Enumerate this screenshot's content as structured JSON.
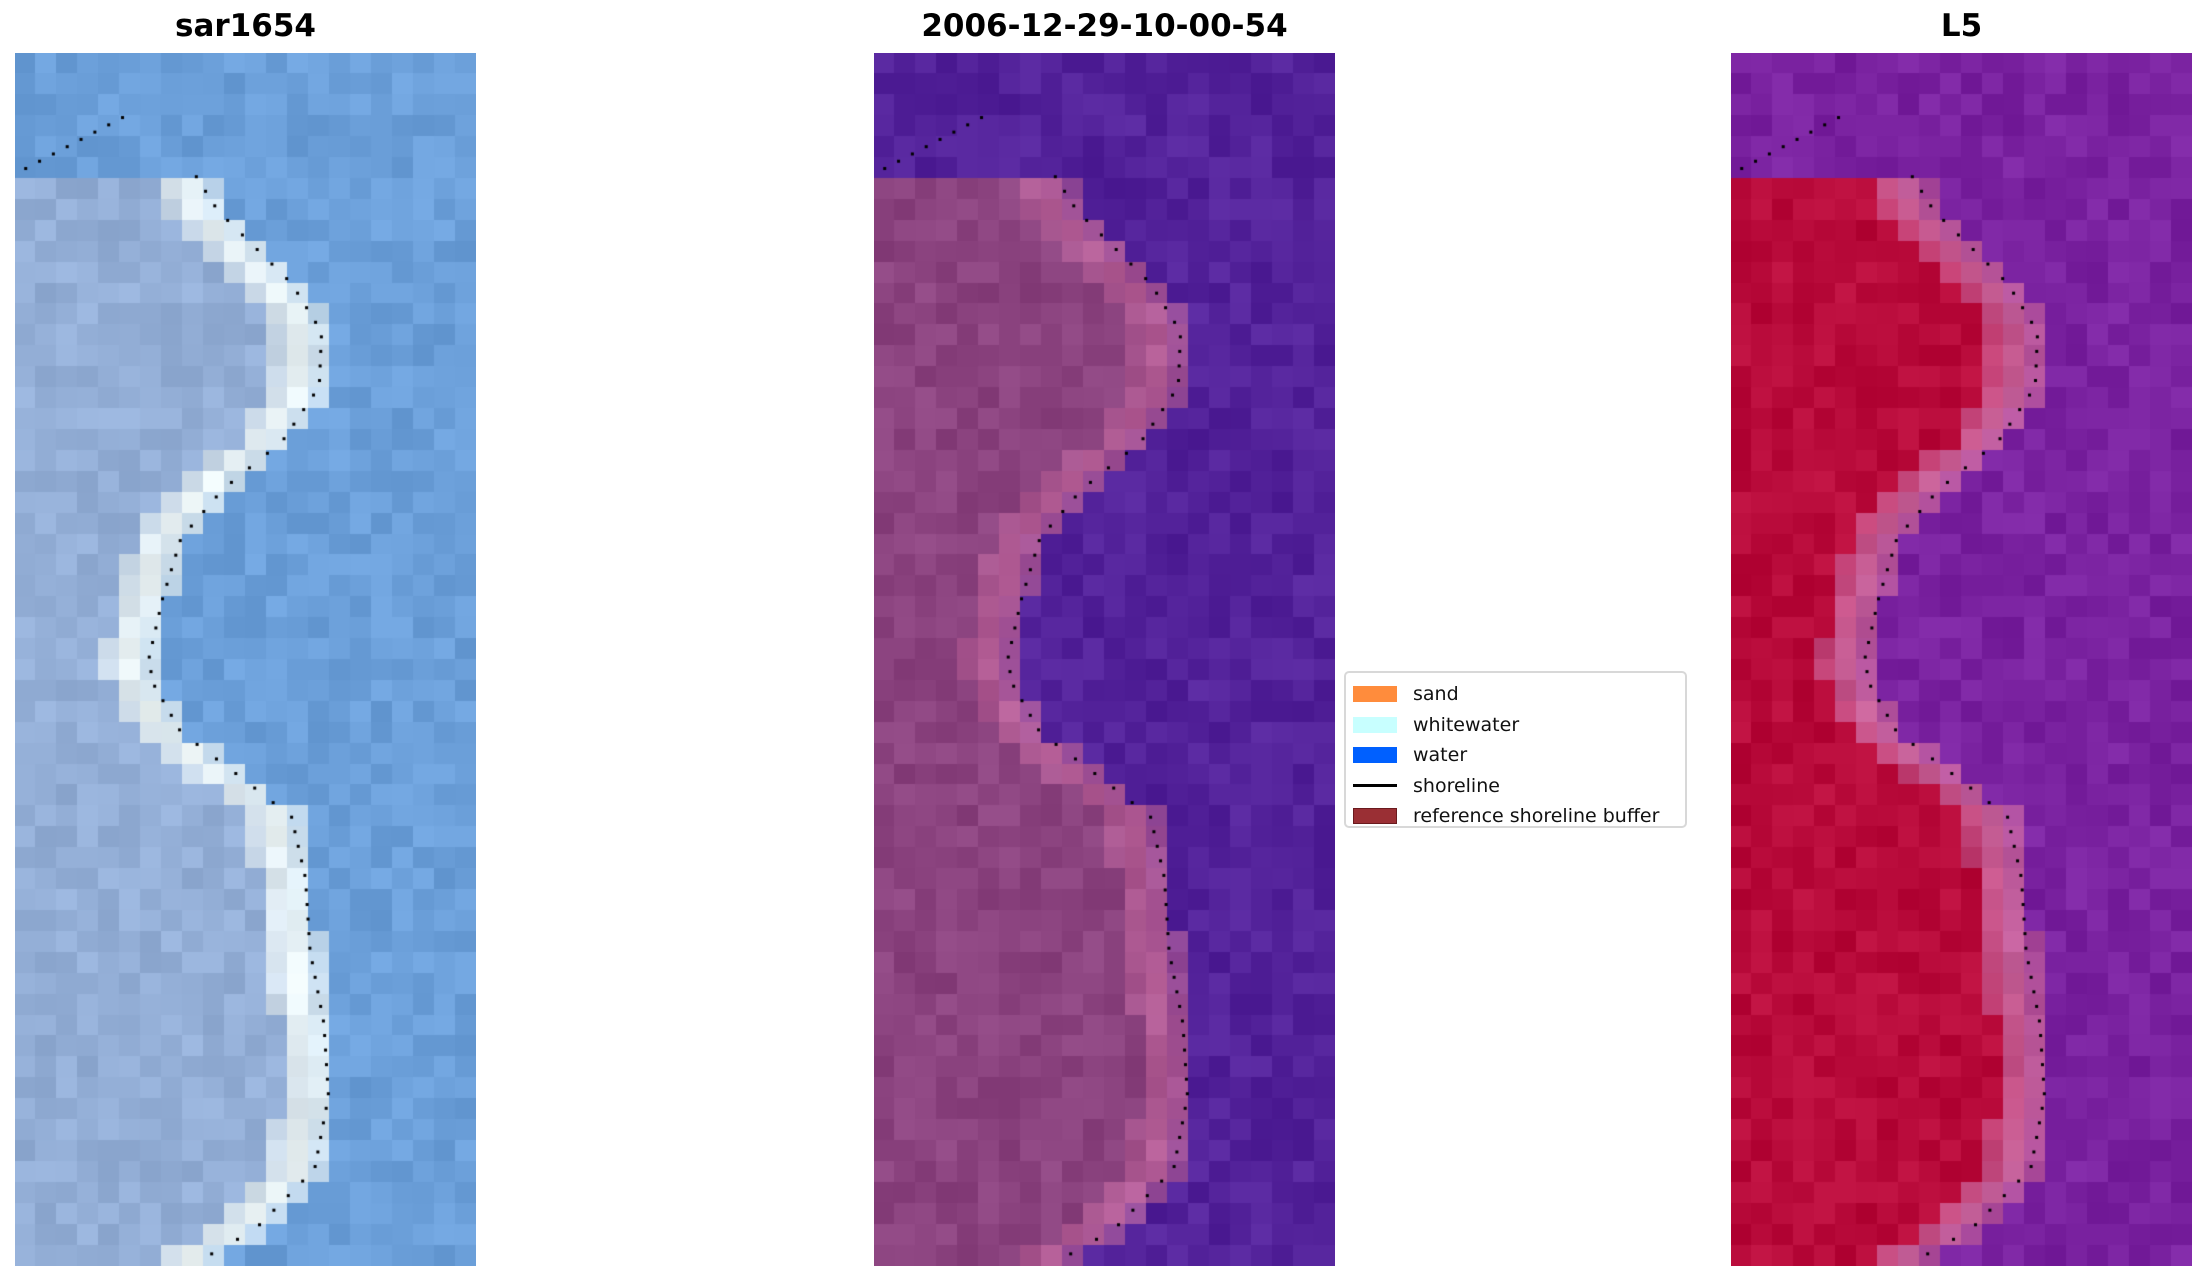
{
  "chart_data": [
    {
      "type": "heatmap",
      "title": "sar1654",
      "colors": {
        "water": "#6b9fd9",
        "land": "#93aed6",
        "near_shore": "#eef6f6"
      }
    },
    {
      "type": "heatmap",
      "title": "2006-12-29-10-00-54",
      "colors": {
        "water": "#53229a",
        "land": "#8b437f",
        "near_shore": "#b55e96"
      }
    },
    {
      "type": "heatmap",
      "title": "L5",
      "colors": {
        "water": "#7a22a0",
        "land": "#b80a3a",
        "near_shore": "#c8639a"
      }
    }
  ],
  "legend": {
    "placement": "center",
    "items": [
      {
        "label": "sand",
        "color": "#ff8c3c",
        "kind": "patch"
      },
      {
        "label": "whitewater",
        "color": "#c8ffff",
        "kind": "patch"
      },
      {
        "label": "water",
        "color": "#0060ff",
        "kind": "patch"
      },
      {
        "label": "shoreline",
        "color": "#000000",
        "kind": "line"
      },
      {
        "label": "reference shoreline buffer",
        "color": "#9a2f34",
        "kind": "patch"
      }
    ]
  }
}
